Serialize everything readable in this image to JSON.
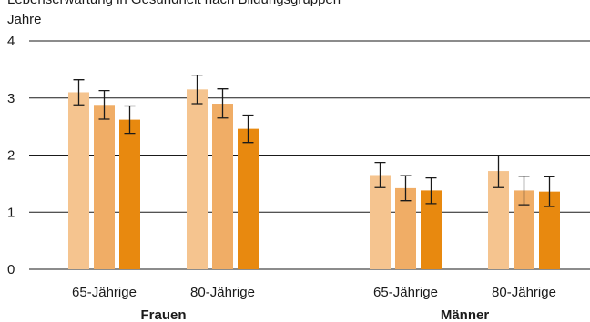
{
  "chart_data": {
    "type": "bar",
    "title": "",
    "top_text": "Lebenserwartung in Gesundheit nach Bildungsgruppen",
    "ylabel": "Jahre",
    "ylim": [
      0,
      4
    ],
    "yticks": [
      "0",
      "1",
      "2",
      "3",
      "4"
    ],
    "grid": true,
    "groups": [
      {
        "label": "Frauen",
        "categories": [
          {
            "label": "65-Jährige",
            "values": [
              3.1,
              2.88,
              2.62
            ],
            "errors": [
              [
                2.88,
                3.32
              ],
              [
                2.63,
                3.13
              ],
              [
                2.38,
                2.86
              ]
            ]
          },
          {
            "label": "80-Jährige",
            "values": [
              3.15,
              2.9,
              2.46
            ],
            "errors": [
              [
                2.9,
                3.4
              ],
              [
                2.65,
                3.16
              ],
              [
                2.22,
                2.7
              ]
            ]
          }
        ]
      },
      {
        "label": "Männer",
        "categories": [
          {
            "label": "65-Jährige",
            "values": [
              1.65,
              1.42,
              1.38
            ],
            "errors": [
              [
                1.43,
                1.87
              ],
              [
                1.2,
                1.64
              ],
              [
                1.15,
                1.6
              ]
            ]
          },
          {
            "label": "80-Jährige",
            "values": [
              1.72,
              1.38,
              1.36
            ],
            "errors": [
              [
                1.43,
                1.99
              ],
              [
                1.13,
                1.63
              ],
              [
                1.1,
                1.62
              ]
            ]
          }
        ]
      }
    ],
    "series_colors": [
      "#f5c48f",
      "#f0ad66",
      "#e8890f"
    ]
  }
}
